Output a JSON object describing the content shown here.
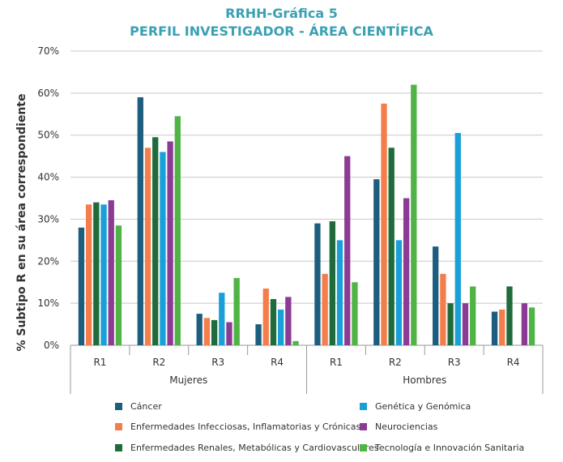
{
  "title": "RRHH-Gráfica 5",
  "subtitle": "PERFIL INVESTIGADOR - ÁREA CIENTÍFICA",
  "chart_data": {
    "type": "bar",
    "title": "RRHH-Gráfica 5",
    "subtitle": "PERFIL INVESTIGADOR - ÁREA CIENTÍFICA",
    "ylabel": "% Subtipo R en su área correspondiente",
    "xlabel": "",
    "ylim": [
      0,
      70
    ],
    "yticks": [
      0,
      10,
      20,
      30,
      40,
      50,
      60,
      70
    ],
    "ytick_labels": [
      "0%",
      "10%",
      "20%",
      "30%",
      "40%",
      "50%",
      "60%",
      "70%"
    ],
    "grid": true,
    "groups": [
      "Mujeres",
      "Hombres"
    ],
    "categories": [
      "R1",
      "R2",
      "R3",
      "R4",
      "R1",
      "R2",
      "R3",
      "R4"
    ],
    "series": [
      {
        "name": "Cáncer",
        "color": "#1d5d7e",
        "values": [
          28,
          59,
          7.5,
          5,
          29,
          39.5,
          23.5,
          8
        ]
      },
      {
        "name": "Enfermedades Infecciosas, Inflamatorias y Crónicas",
        "color": "#f47e4b",
        "values": [
          33.5,
          47,
          6.5,
          13.5,
          17,
          57.5,
          17,
          8.5
        ]
      },
      {
        "name": "Enfermedades Renales, Metabólicas y Cardiovasculares",
        "color": "#1f6b3b",
        "values": [
          34,
          49.5,
          6,
          11,
          29.5,
          47,
          10,
          14
        ]
      },
      {
        "name": "Genética y Genómica",
        "color": "#1aa0d8",
        "values": [
          33.5,
          46,
          12.5,
          8.5,
          25,
          25,
          50.5,
          0
        ]
      },
      {
        "name": "Neurociencias",
        "color": "#8c3b94",
        "values": [
          34.5,
          48.5,
          5.5,
          11.5,
          45,
          35,
          10,
          10
        ]
      },
      {
        "name": "Tecnología e Innovación Sanitaria",
        "color": "#4fb445",
        "values": [
          28.5,
          54.5,
          16,
          1,
          15,
          62,
          14,
          9
        ]
      }
    ],
    "legend_position": "bottom"
  }
}
